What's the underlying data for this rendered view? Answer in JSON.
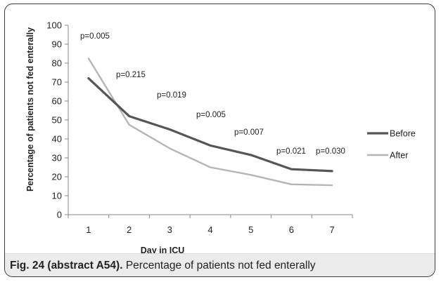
{
  "chart_data": {
    "type": "line",
    "x": [
      1,
      2,
      3,
      4,
      5,
      6,
      7
    ],
    "series": [
      {
        "name": "Before",
        "color": "#555555",
        "values": [
          72,
          52,
          45,
          36.5,
          31.5,
          24,
          23
        ]
      },
      {
        "name": "After",
        "color": "#b5b5b5",
        "values": [
          82.5,
          47.5,
          35,
          25,
          21,
          16,
          15.5
        ]
      }
    ],
    "annotations": [
      "p=0.005",
      "p=0.215",
      "p=0.019",
      "p=0.005",
      "p=0.007",
      "p=0.021",
      "p=0.030"
    ],
    "xlabel": "Day in ICU",
    "ylabel": "Percentage of patients not fed enterally",
    "xlim": [
      0.5,
      7.5
    ],
    "ylim": [
      0,
      100
    ],
    "yticks": [
      0,
      10,
      20,
      30,
      40,
      50,
      60,
      70,
      80,
      90,
      100
    ],
    "xticks": [
      1,
      2,
      3,
      4,
      5,
      6,
      7
    ],
    "grid": false,
    "legend_position": "right"
  },
  "caption": {
    "label": "Fig. 24 (abstract A54).",
    "text": " Percentage of patients not fed enterally"
  }
}
